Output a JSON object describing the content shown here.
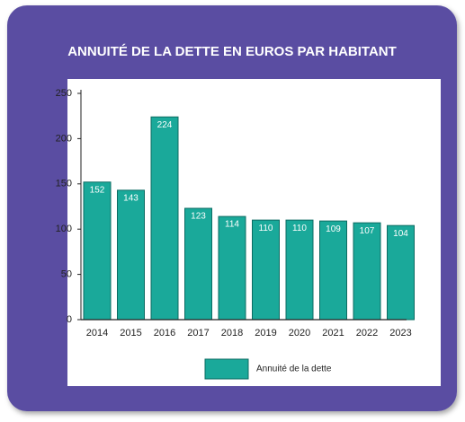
{
  "chart_data": {
    "type": "bar",
    "title": "ANNUITÉ DE LA DETTE EN EUROS PAR HABITANT",
    "categories": [
      "2014",
      "2015",
      "2016",
      "2017",
      "2018",
      "2019",
      "2020",
      "2021",
      "2022",
      "2023"
    ],
    "series": [
      {
        "name": "Annuité de la dette",
        "color": "#1aa99a",
        "values": [
          152,
          143,
          224,
          123,
          114,
          110,
          110,
          109,
          107,
          104
        ]
      }
    ],
    "ylim": [
      0,
      250
    ],
    "yticks": [
      0,
      50,
      100,
      150,
      200,
      250
    ],
    "grid": false,
    "legend": "bottom"
  }
}
